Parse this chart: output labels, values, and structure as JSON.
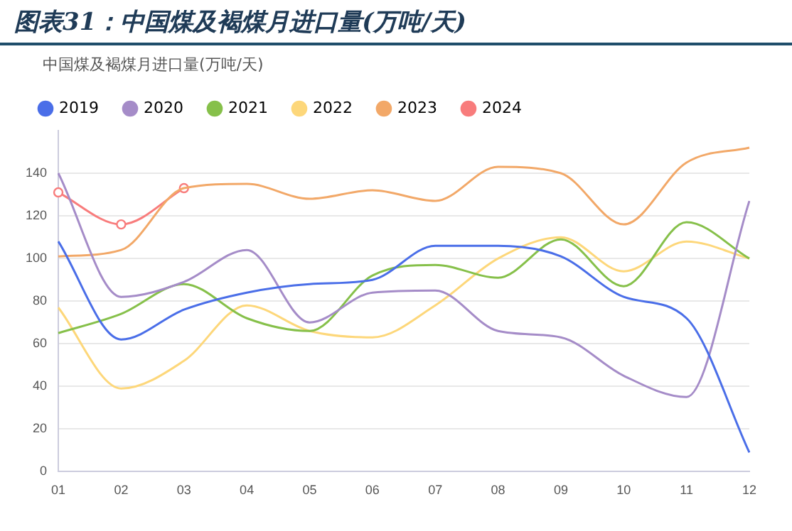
{
  "chart_data": {
    "type": "line",
    "title": "图表31：中国煤及褐煤月进口量(万吨/天)",
    "subtitle": "中国煤及褐煤月进口量(万吨/天)",
    "categories": [
      "01",
      "02",
      "03",
      "04",
      "05",
      "06",
      "07",
      "08",
      "09",
      "10",
      "11",
      "12"
    ],
    "series": [
      {
        "name": "2019",
        "color": "#4a6ee8",
        "values": [
          108,
          62,
          76,
          84,
          88,
          90,
          106,
          106,
          101,
          82,
          72,
          9
        ]
      },
      {
        "name": "2020",
        "color": "#a58cc8",
        "values": [
          140,
          82,
          89,
          104,
          70,
          84,
          85,
          66,
          63,
          45,
          35,
          127
        ]
      },
      {
        "name": "2021",
        "color": "#86c04a",
        "values": [
          65,
          74,
          88,
          72,
          66,
          92,
          97,
          91,
          109,
          87,
          117,
          100
        ]
      },
      {
        "name": "2022",
        "color": "#fdd77a",
        "values": [
          77,
          39,
          52,
          78,
          66,
          63,
          78,
          100,
          110,
          94,
          108,
          100
        ]
      },
      {
        "name": "2023",
        "color": "#f2a868",
        "values": [
          101,
          104,
          133,
          135,
          128,
          132,
          127,
          143,
          140,
          116,
          145,
          152
        ]
      },
      {
        "name": "2024",
        "color": "#f87c7c",
        "values": [
          131,
          116,
          133,
          null,
          null,
          null,
          null,
          null,
          null,
          null,
          null,
          null
        ],
        "marker": "circle"
      }
    ],
    "ylim": [
      0,
      160
    ],
    "yticks": [
      0,
      20,
      40,
      60,
      80,
      100,
      120,
      140
    ],
    "grid": "y",
    "legend": "top left",
    "marker": "none"
  }
}
